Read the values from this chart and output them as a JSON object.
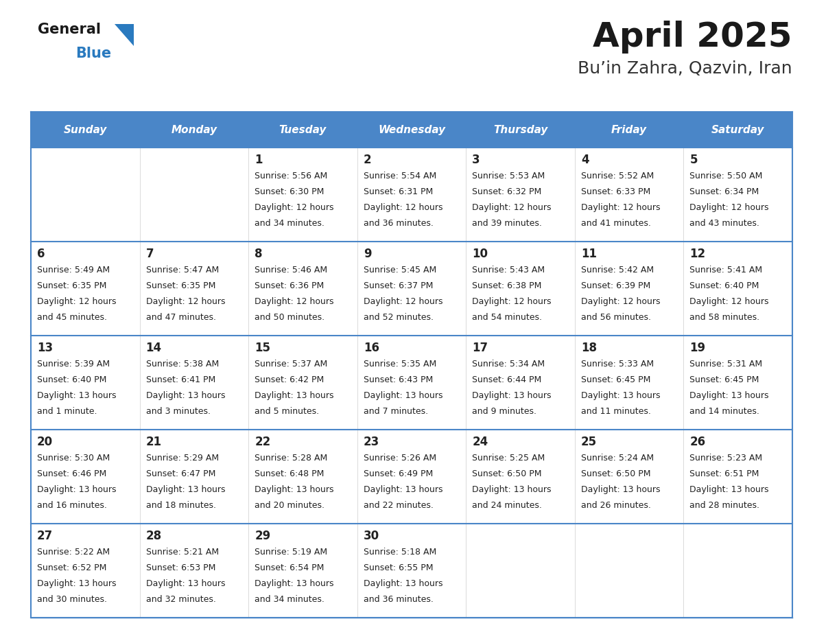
{
  "title": "April 2025",
  "subtitle": "Bu’in Zahra, Qazvin, Iran",
  "header_color": "#4a86c8",
  "header_text_color": "#ffffff",
  "cell_bg_color": "#ffffff",
  "cell_alt_bg_color": "#f5f5f5",
  "cell_text_color": "#222222",
  "day_number_color": "#222222",
  "border_color": "#4a86c8",
  "line_color": "#4a86c8",
  "days_of_week": [
    "Sunday",
    "Monday",
    "Tuesday",
    "Wednesday",
    "Thursday",
    "Friday",
    "Saturday"
  ],
  "weeks": [
    [
      {
        "day": "",
        "sunrise": "",
        "sunset": "",
        "daylight": ""
      },
      {
        "day": "",
        "sunrise": "",
        "sunset": "",
        "daylight": ""
      },
      {
        "day": "1",
        "sunrise": "Sunrise: 5:56 AM",
        "sunset": "Sunset: 6:30 PM",
        "daylight": "Daylight: 12 hours\nand 34 minutes."
      },
      {
        "day": "2",
        "sunrise": "Sunrise: 5:54 AM",
        "sunset": "Sunset: 6:31 PM",
        "daylight": "Daylight: 12 hours\nand 36 minutes."
      },
      {
        "day": "3",
        "sunrise": "Sunrise: 5:53 AM",
        "sunset": "Sunset: 6:32 PM",
        "daylight": "Daylight: 12 hours\nand 39 minutes."
      },
      {
        "day": "4",
        "sunrise": "Sunrise: 5:52 AM",
        "sunset": "Sunset: 6:33 PM",
        "daylight": "Daylight: 12 hours\nand 41 minutes."
      },
      {
        "day": "5",
        "sunrise": "Sunrise: 5:50 AM",
        "sunset": "Sunset: 6:34 PM",
        "daylight": "Daylight: 12 hours\nand 43 minutes."
      }
    ],
    [
      {
        "day": "6",
        "sunrise": "Sunrise: 5:49 AM",
        "sunset": "Sunset: 6:35 PM",
        "daylight": "Daylight: 12 hours\nand 45 minutes."
      },
      {
        "day": "7",
        "sunrise": "Sunrise: 5:47 AM",
        "sunset": "Sunset: 6:35 PM",
        "daylight": "Daylight: 12 hours\nand 47 minutes."
      },
      {
        "day": "8",
        "sunrise": "Sunrise: 5:46 AM",
        "sunset": "Sunset: 6:36 PM",
        "daylight": "Daylight: 12 hours\nand 50 minutes."
      },
      {
        "day": "9",
        "sunrise": "Sunrise: 5:45 AM",
        "sunset": "Sunset: 6:37 PM",
        "daylight": "Daylight: 12 hours\nand 52 minutes."
      },
      {
        "day": "10",
        "sunrise": "Sunrise: 5:43 AM",
        "sunset": "Sunset: 6:38 PM",
        "daylight": "Daylight: 12 hours\nand 54 minutes."
      },
      {
        "day": "11",
        "sunrise": "Sunrise: 5:42 AM",
        "sunset": "Sunset: 6:39 PM",
        "daylight": "Daylight: 12 hours\nand 56 minutes."
      },
      {
        "day": "12",
        "sunrise": "Sunrise: 5:41 AM",
        "sunset": "Sunset: 6:40 PM",
        "daylight": "Daylight: 12 hours\nand 58 minutes."
      }
    ],
    [
      {
        "day": "13",
        "sunrise": "Sunrise: 5:39 AM",
        "sunset": "Sunset: 6:40 PM",
        "daylight": "Daylight: 13 hours\nand 1 minute."
      },
      {
        "day": "14",
        "sunrise": "Sunrise: 5:38 AM",
        "sunset": "Sunset: 6:41 PM",
        "daylight": "Daylight: 13 hours\nand 3 minutes."
      },
      {
        "day": "15",
        "sunrise": "Sunrise: 5:37 AM",
        "sunset": "Sunset: 6:42 PM",
        "daylight": "Daylight: 13 hours\nand 5 minutes."
      },
      {
        "day": "16",
        "sunrise": "Sunrise: 5:35 AM",
        "sunset": "Sunset: 6:43 PM",
        "daylight": "Daylight: 13 hours\nand 7 minutes."
      },
      {
        "day": "17",
        "sunrise": "Sunrise: 5:34 AM",
        "sunset": "Sunset: 6:44 PM",
        "daylight": "Daylight: 13 hours\nand 9 minutes."
      },
      {
        "day": "18",
        "sunrise": "Sunrise: 5:33 AM",
        "sunset": "Sunset: 6:45 PM",
        "daylight": "Daylight: 13 hours\nand 11 minutes."
      },
      {
        "day": "19",
        "sunrise": "Sunrise: 5:31 AM",
        "sunset": "Sunset: 6:45 PM",
        "daylight": "Daylight: 13 hours\nand 14 minutes."
      }
    ],
    [
      {
        "day": "20",
        "sunrise": "Sunrise: 5:30 AM",
        "sunset": "Sunset: 6:46 PM",
        "daylight": "Daylight: 13 hours\nand 16 minutes."
      },
      {
        "day": "21",
        "sunrise": "Sunrise: 5:29 AM",
        "sunset": "Sunset: 6:47 PM",
        "daylight": "Daylight: 13 hours\nand 18 minutes."
      },
      {
        "day": "22",
        "sunrise": "Sunrise: 5:28 AM",
        "sunset": "Sunset: 6:48 PM",
        "daylight": "Daylight: 13 hours\nand 20 minutes."
      },
      {
        "day": "23",
        "sunrise": "Sunrise: 5:26 AM",
        "sunset": "Sunset: 6:49 PM",
        "daylight": "Daylight: 13 hours\nand 22 minutes."
      },
      {
        "day": "24",
        "sunrise": "Sunrise: 5:25 AM",
        "sunset": "Sunset: 6:50 PM",
        "daylight": "Daylight: 13 hours\nand 24 minutes."
      },
      {
        "day": "25",
        "sunrise": "Sunrise: 5:24 AM",
        "sunset": "Sunset: 6:50 PM",
        "daylight": "Daylight: 13 hours\nand 26 minutes."
      },
      {
        "day": "26",
        "sunrise": "Sunrise: 5:23 AM",
        "sunset": "Sunset: 6:51 PM",
        "daylight": "Daylight: 13 hours\nand 28 minutes."
      }
    ],
    [
      {
        "day": "27",
        "sunrise": "Sunrise: 5:22 AM",
        "sunset": "Sunset: 6:52 PM",
        "daylight": "Daylight: 13 hours\nand 30 minutes."
      },
      {
        "day": "28",
        "sunrise": "Sunrise: 5:21 AM",
        "sunset": "Sunset: 6:53 PM",
        "daylight": "Daylight: 13 hours\nand 32 minutes."
      },
      {
        "day": "29",
        "sunrise": "Sunrise: 5:19 AM",
        "sunset": "Sunset: 6:54 PM",
        "daylight": "Daylight: 13 hours\nand 34 minutes."
      },
      {
        "day": "30",
        "sunrise": "Sunrise: 5:18 AM",
        "sunset": "Sunset: 6:55 PM",
        "daylight": "Daylight: 13 hours\nand 36 minutes."
      },
      {
        "day": "",
        "sunrise": "",
        "sunset": "",
        "daylight": ""
      },
      {
        "day": "",
        "sunrise": "",
        "sunset": "",
        "daylight": ""
      },
      {
        "day": "",
        "sunrise": "",
        "sunset": "",
        "daylight": ""
      }
    ]
  ],
  "logo_color_general": "#1a1a1a",
  "logo_color_blue": "#2a7abf",
  "title_color": "#1a1a1a",
  "subtitle_color": "#333333"
}
